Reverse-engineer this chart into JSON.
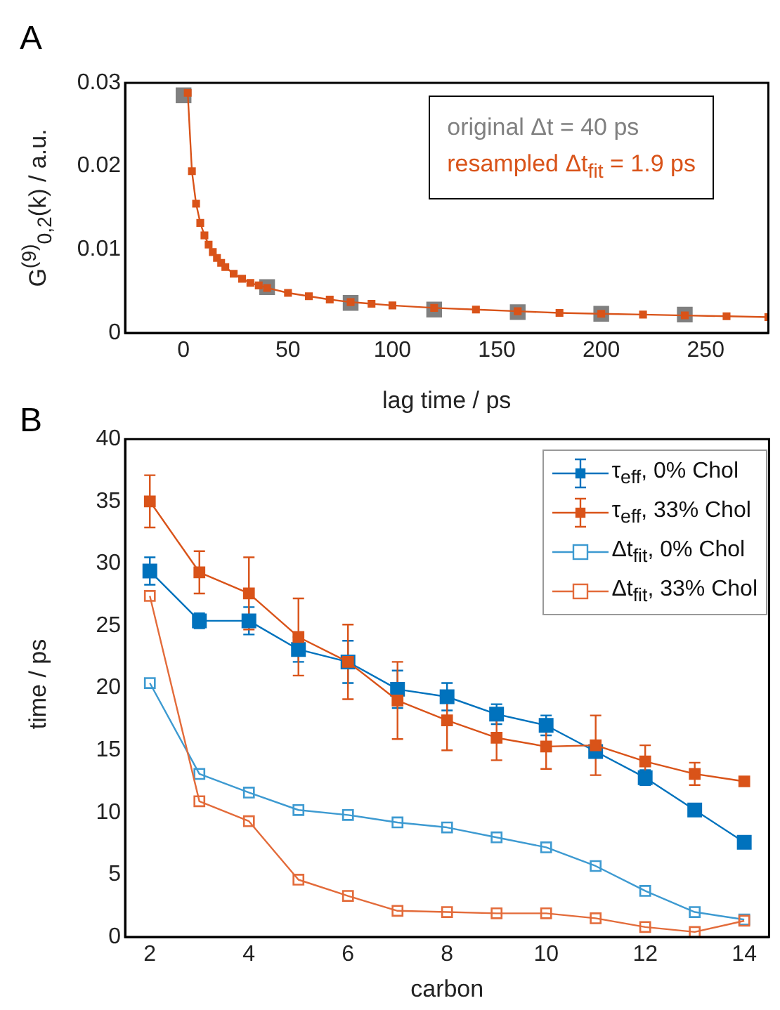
{
  "chart_data": [
    {
      "type": "line",
      "title": "A",
      "xlabel": "lag time / ps",
      "ylabel": "G$^{(9)}$$_{0,2}$(k) / a.u.",
      "xlim": [
        -28,
        280
      ],
      "xticks": [
        0,
        50,
        100,
        150,
        200,
        250
      ],
      "ylim": [
        0,
        0.03
      ],
      "yticks": [
        0,
        0.01,
        0.02,
        0.03
      ],
      "legend": "top right",
      "marker": "square",
      "grid": false,
      "series": [
        {
          "name": "original Δt = 40 ps",
          "type": "scatter",
          "color": "#808080",
          "x": [
            0,
            40,
            80,
            120,
            160,
            200,
            240
          ],
          "values": [
            0.0285,
            0.0055,
            0.0036,
            0.0028,
            0.0025,
            0.0023,
            0.0022
          ]
        },
        {
          "name": "resampled Δt$_{fit}$ = 1.9 ps",
          "type": "line",
          "color": "#d95319",
          "x": [
            2,
            4,
            6,
            8,
            10,
            12,
            14,
            16,
            18,
            20,
            24,
            28,
            32,
            36,
            40,
            50,
            60,
            70,
            80,
            90,
            100,
            120,
            140,
            160,
            180,
            200,
            220,
            240,
            260,
            280
          ],
          "values": [
            0.0288,
            0.0194,
            0.0155,
            0.0132,
            0.0117,
            0.0106,
            0.0097,
            0.009,
            0.0084,
            0.0079,
            0.0071,
            0.0065,
            0.006,
            0.0057,
            0.0054,
            0.0048,
            0.0044,
            0.004,
            0.0037,
            0.0035,
            0.0033,
            0.003,
            0.0028,
            0.0026,
            0.0024,
            0.0023,
            0.0022,
            0.0021,
            0.002,
            0.0019
          ]
        }
      ]
    },
    {
      "type": "line",
      "title": "B",
      "xlabel": "carbon",
      "ylabel": "time / ps",
      "x": [
        2,
        3,
        4,
        5,
        6,
        7,
        8,
        9,
        10,
        11,
        12,
        13,
        14
      ],
      "xlim": [
        1.5,
        14.5
      ],
      "xticks": [
        2,
        4,
        6,
        8,
        10,
        12,
        14
      ],
      "ylim": [
        0,
        40
      ],
      "yticks": [
        0,
        5,
        10,
        15,
        20,
        25,
        30,
        35,
        40
      ],
      "legend": "top right",
      "marker": "square",
      "grid": false,
      "series": [
        {
          "name": "τ$_{eff}$, 0% Chol",
          "color": "#0072bd",
          "values": [
            29.4,
            25.4,
            25.4,
            23.1,
            22.1,
            19.9,
            19.3,
            17.9,
            17.0,
            14.9,
            12.8,
            10.2,
            7.6
          ],
          "errors": [
            1.1,
            0.6,
            1.1,
            1.0,
            1.7,
            1.5,
            1.1,
            0.8,
            0.8,
            null,
            0.6,
            null,
            null
          ]
        },
        {
          "name": "τ$_{eff}$, 33% Chol",
          "color": "#d95319",
          "values": [
            35.0,
            29.3,
            27.6,
            24.1,
            22.1,
            19.0,
            17.4,
            16.0,
            15.3,
            15.4,
            14.1,
            13.1,
            12.5
          ],
          "errors": [
            2.1,
            1.7,
            2.9,
            3.1,
            3.0,
            3.1,
            2.4,
            1.8,
            1.8,
            2.4,
            1.3,
            0.9,
            null
          ]
        },
        {
          "name": "Δt$_{fit}$, 0% Chol",
          "color": "#3d9ad1",
          "values": [
            20.4,
            13.1,
            11.6,
            10.2,
            9.8,
            9.2,
            8.8,
            8.0,
            7.2,
            5.7,
            3.7,
            2.0,
            1.4
          ]
        },
        {
          "name": "Δt$_{fit}$, 33% Chol",
          "color": "#e36b3a",
          "values": [
            27.4,
            10.9,
            9.3,
            4.6,
            3.3,
            2.1,
            2.0,
            1.9,
            1.9,
            1.5,
            0.8,
            0.4,
            1.3
          ]
        }
      ]
    }
  ]
}
